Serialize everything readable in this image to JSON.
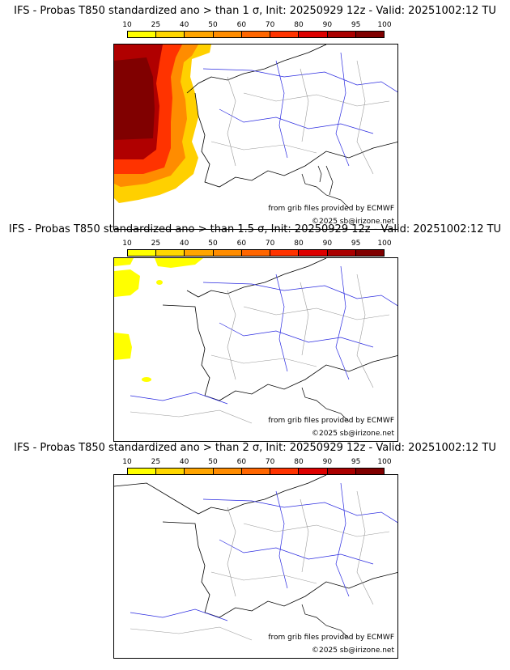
{
  "colorbar": {
    "ticks": [
      "10",
      "25",
      "40",
      "50",
      "60",
      "70",
      "80",
      "90",
      "95",
      "100"
    ],
    "colors": [
      "#ffff00",
      "#ffd700",
      "#ffa500",
      "#ff8c00",
      "#ff6600",
      "#ff3300",
      "#dd0000",
      "#aa0000",
      "#800000"
    ]
  },
  "panels": [
    {
      "title": "IFS - Probas T850  standardized ano > than 1 σ, Init: 20250929 12z - Valid: 20251002:12 TU",
      "credit_source": "from grib files provided by ECMWF",
      "credit_copyright": "©2025 sb@irizone.net"
    },
    {
      "title": "IFS - Probas T850  standardized ano > than 1.5 σ, Init: 20250929 12z - Valid: 20251002:12 TU",
      "credit_source": "from grib files provided by ECMWF",
      "credit_copyright": "©2025 sb@irizone.net"
    },
    {
      "title": "IFS - Probas T850  standardized ano > than 2 σ, Init: 20250929 12z - Valid: 20251002:12 TU",
      "credit_source": "from grib files provided by ECMWF",
      "credit_copyright": "©2025 sb@irizone.net"
    }
  ]
}
